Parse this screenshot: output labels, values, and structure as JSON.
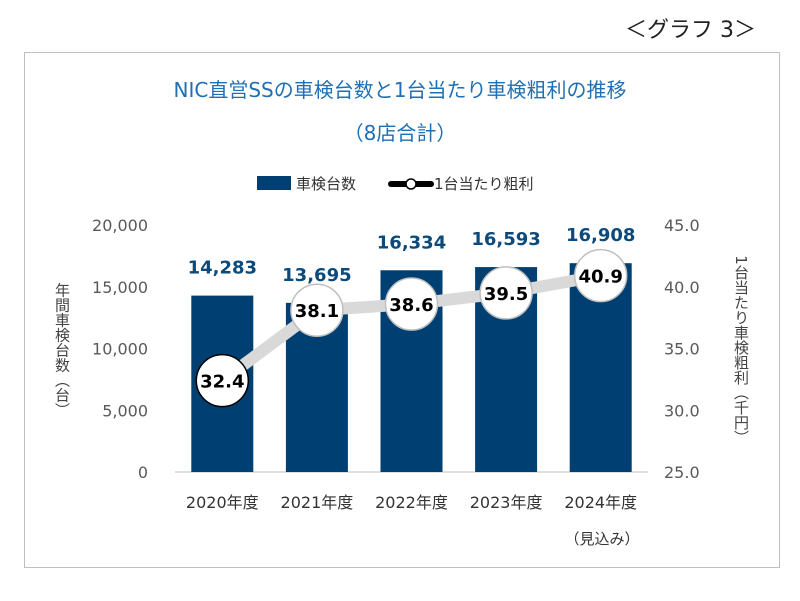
{
  "figure_label": "＜グラフ 3＞",
  "chart_data": {
    "type": "bar",
    "title": "NIC直営SSの車検台数と1台当たり車検粗利の推移",
    "subtitle": "（8店合計）",
    "categories": [
      "2020年度",
      "2021年度",
      "2022年度",
      "2023年度",
      "2024年度"
    ],
    "category_note": "（見込み）",
    "series": [
      {
        "name": "車検台数",
        "type": "bar",
        "axis": "left",
        "values": [
          14283,
          13695,
          16334,
          16593,
          16908
        ],
        "labels": [
          "14,283",
          "13,695",
          "16,334",
          "16,593",
          "16,908"
        ]
      },
      {
        "name": "1台当たり粗利",
        "type": "line",
        "axis": "right",
        "values": [
          32.4,
          38.1,
          38.6,
          39.5,
          40.9
        ],
        "labels": [
          "32.4",
          "38.1",
          "38.6",
          "39.5",
          "40.9"
        ]
      }
    ],
    "ylabel": "年間車検台数（台）",
    "y2label": "1台当たり車検粗利（千円）",
    "ylim": [
      0,
      20000
    ],
    "y2lim": [
      25.0,
      45.0
    ],
    "yticks": [
      "0",
      "5,000",
      "10,000",
      "15,000",
      "20,000"
    ],
    "y2ticks": [
      "25.0",
      "30.0",
      "35.0",
      "40.0",
      "45.0"
    ],
    "legend": "top-center",
    "grid": false,
    "colors": {
      "bar": "#003f72",
      "bar_label": "#0b4a7a",
      "line": "#d9d9d9",
      "title": "#1f6fb5"
    }
  }
}
